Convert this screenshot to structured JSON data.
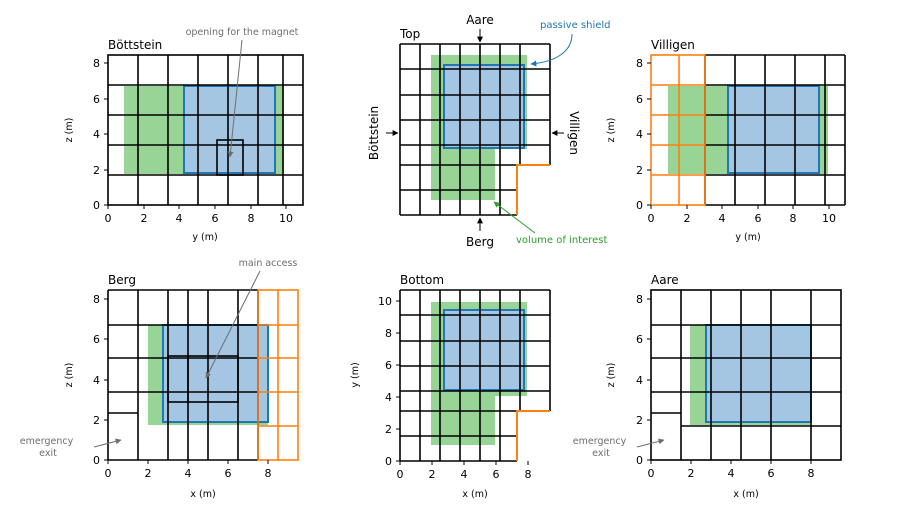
{
  "figure": {
    "colors": {
      "volume": "#98d495",
      "shield_fill": "#a5c6e2",
      "shield_edge": "#1f77b4",
      "wall": "#000000",
      "orange": "#ff7f0e",
      "annotation": "#6e6e6e",
      "green_label": "#2ca02c",
      "blue_label": "#1f77b4"
    }
  },
  "panels": {
    "bottstein": {
      "title": "Böttstein",
      "xlabel": "y (m)",
      "ylabel": "z (m)",
      "xticks": [
        "0",
        "2",
        "4",
        "6",
        "8",
        "10"
      ],
      "yticks": [
        "0",
        "2",
        "4",
        "6",
        "8"
      ],
      "annotation": "opening for the magnet"
    },
    "top": {
      "title": "Top",
      "side_labels": {
        "north": "Aare",
        "south": "Berg",
        "west": "Böttstein",
        "east": "Villigen"
      },
      "passive_shield": "passive shield",
      "volume_of_interest": "volume of interest"
    },
    "villigen": {
      "title": "Villigen",
      "xlabel": "y (m)",
      "ylabel": "z (m)",
      "xticks": [
        "0",
        "2",
        "4",
        "6",
        "8",
        "10"
      ],
      "yticks": [
        "0",
        "2",
        "4",
        "6",
        "8"
      ]
    },
    "berg": {
      "title": "Berg",
      "xlabel": "x (m)",
      "ylabel": "z (m)",
      "xticks": [
        "0",
        "2",
        "4",
        "6",
        "8"
      ],
      "yticks": [
        "0",
        "2",
        "4",
        "6",
        "8"
      ],
      "annotation_main": "main access",
      "annotation_exit": "emergency\nexit"
    },
    "bottom": {
      "title": "Bottom",
      "xlabel": "x (m)",
      "ylabel": "y (m)",
      "xticks": [
        "0",
        "2",
        "4",
        "6",
        "8"
      ],
      "yticks": [
        "0",
        "2",
        "4",
        "6",
        "8",
        "10"
      ]
    },
    "aare": {
      "title": "Aare",
      "xlabel": "x (m)",
      "ylabel": "z (m)",
      "xticks": [
        "0",
        "2",
        "4",
        "6",
        "8"
      ],
      "yticks": [
        "0",
        "2",
        "4",
        "6",
        "8"
      ],
      "annotation_exit": "emergency\nexit"
    }
  }
}
